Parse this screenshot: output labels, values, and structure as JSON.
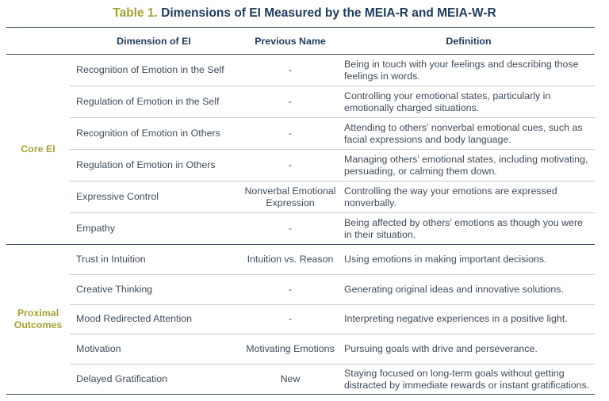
{
  "title": {
    "label": "Table 1.",
    "text": "Dimensions of EI Measured by the MEIA-R and MEIA-W-R"
  },
  "headers": [
    "",
    "Dimension of EI",
    "Previous Name",
    "Definition"
  ],
  "groups": [
    {
      "name": "Core EI",
      "rows": [
        {
          "dimension": "Recognition of Emotion in the Self",
          "previous": "-",
          "definition": "Being in touch with your feelings and describing those feelings in words."
        },
        {
          "dimension": "Regulation of Emotion in the Self",
          "previous": "-",
          "definition": "Controlling your emotional states, particularly in emotionally charged situations."
        },
        {
          "dimension": "Recognition of Emotion in Others",
          "previous": "-",
          "definition": "Attending to others’ nonverbal emotional cues, such as facial expressions and body language."
        },
        {
          "dimension": "Regulation of Emotion in Others",
          "previous": "-",
          "definition": "Managing others’ emotional states, including motivating, persuading, or calming them down."
        },
        {
          "dimension": "Expressive Control",
          "previous": "Nonverbal Emotional Expression",
          "definition": "Controlling the way your emotions are expressed nonverbally."
        },
        {
          "dimension": "Empathy",
          "previous": "-",
          "definition": "Being affected by others’ emotions as though you were in their situation."
        }
      ]
    },
    {
      "name": "Proximal Outcomes",
      "rows": [
        {
          "dimension": "Trust in Intuition",
          "previous": "Intuition vs. Reason",
          "definition": "Using emotions in making important decisions."
        },
        {
          "dimension": "Creative Thinking",
          "previous": "-",
          "definition": "Generating original ideas and innovative solutions."
        },
        {
          "dimension": "Mood Redirected Attention",
          "previous": "-",
          "definition": "Interpreting negative experiences in a positive light."
        },
        {
          "dimension": "Motivation",
          "previous": "Motivating Emotions",
          "definition": "Pursuing goals with drive and perseverance."
        },
        {
          "dimension": "Delayed Gratification",
          "previous": "New",
          "definition": "Staying focused on long-term goals without getting distracted by immediate rewards or instant gratifications."
        }
      ]
    }
  ],
  "colors": {
    "title_label": "#a3a332",
    "heading": "#1f3b5c",
    "group_label": "#a3a332",
    "body_text": "#3e4b59",
    "rule": "#3c4f63"
  }
}
